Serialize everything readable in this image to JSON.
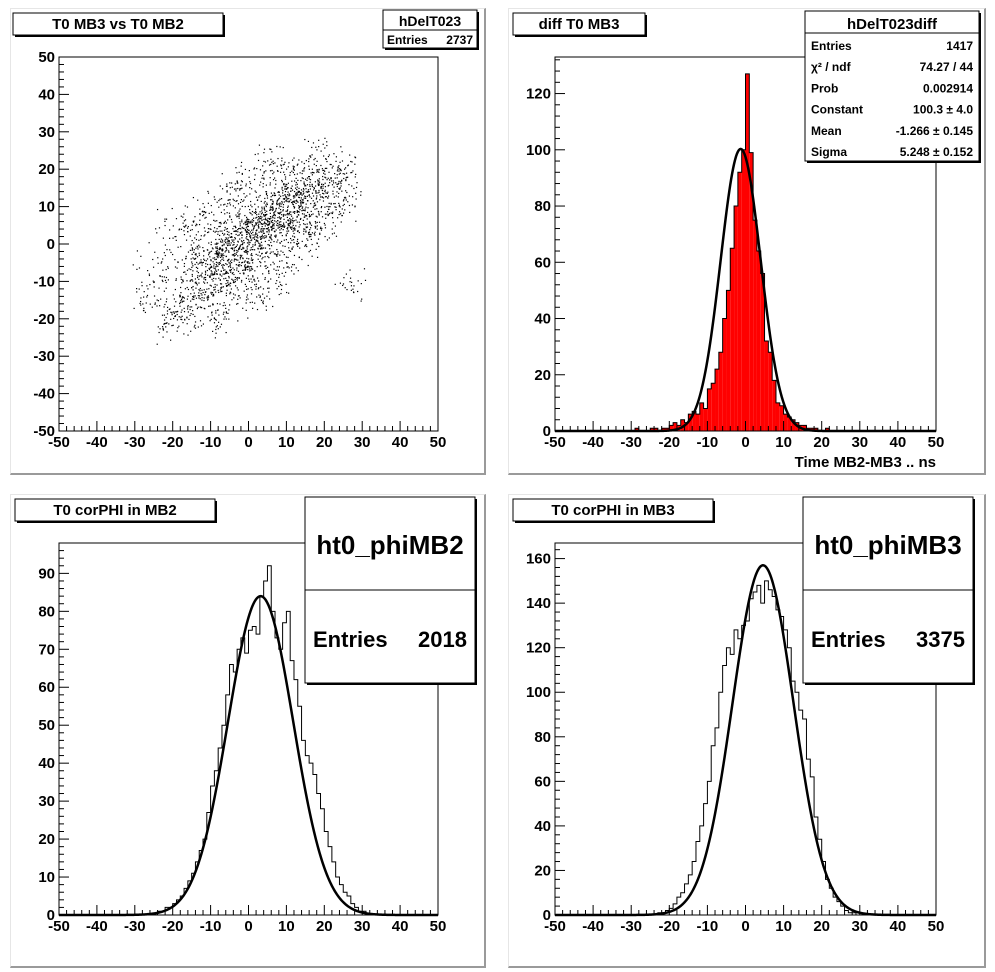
{
  "colors": {
    "fill_red": "#ff0000",
    "line": "#000000",
    "frame": "#000000",
    "pad_shadow": "#9a9a9a"
  },
  "panels": [
    {
      "id": "p1",
      "title": "T0 MB3 vs T0 MB2",
      "stats": {
        "name": "hDelT023",
        "rows": [
          {
            "label": "Entries",
            "value": "2737"
          }
        ]
      },
      "xlabel": ""
    },
    {
      "id": "p2",
      "title": "diff T0 MB3",
      "stats": {
        "name": "hDelT023diff",
        "rows": [
          {
            "label": "Entries",
            "value": "1417"
          },
          {
            "label": "χ² / ndf",
            "value": "74.27 / 44"
          },
          {
            "label": "Prob",
            "value": "0.002914"
          },
          {
            "label": "Constant",
            "value": "100.3 ± 4.0"
          },
          {
            "label": "Mean",
            "value": "-1.266 ± 0.145"
          },
          {
            "label": "Sigma",
            "value": "5.248 ± 0.152"
          }
        ]
      },
      "xlabel": "Time MB2-MB3  ..  ns"
    },
    {
      "id": "p3",
      "title": "T0 corPHI in MB2",
      "stats": {
        "name": "ht0_phiMB2",
        "entries_label": "Entries",
        "entries_value": "2018"
      },
      "xlabel": ""
    },
    {
      "id": "p4",
      "title": "T0 corPHI in MB3",
      "stats": {
        "name": "ht0_phiMB3",
        "entries_label": "Entries",
        "entries_value": "3375"
      },
      "xlabel": ""
    }
  ],
  "chart_data": [
    {
      "type": "scatter",
      "title": "T0 MB3 vs T0 MB2",
      "xlim": [
        -50,
        50
      ],
      "ylim": [
        -50,
        50
      ],
      "xticks": [
        "-50",
        "-40",
        "-30",
        "-20",
        "-10",
        "0",
        "10",
        "20",
        "30",
        "40",
        "50"
      ],
      "yticks": [
        "-50",
        "-40",
        "-30",
        "-20",
        "-10",
        "0",
        "10",
        "20",
        "30",
        "40",
        "50"
      ],
      "points": [
        [
          -22,
          -22
        ],
        [
          -20,
          -18
        ],
        [
          -18,
          -15
        ],
        [
          -17,
          -20
        ],
        [
          -16,
          -12
        ],
        [
          -15,
          -8
        ],
        [
          -14,
          -16
        ],
        [
          -13,
          -5
        ],
        [
          -12,
          -10
        ],
        [
          -12,
          -3
        ],
        [
          -11,
          -14
        ],
        [
          -10,
          -7
        ],
        [
          -10,
          0
        ],
        [
          -9,
          -4
        ],
        [
          -9,
          -12
        ],
        [
          -8,
          -2
        ],
        [
          -8,
          -9
        ],
        [
          -7,
          3
        ],
        [
          -7,
          -6
        ],
        [
          -6,
          -1
        ],
        [
          -6,
          -13
        ],
        [
          -5,
          -5
        ],
        [
          -5,
          2
        ],
        [
          -4,
          0
        ],
        [
          -4,
          -8
        ],
        [
          -3,
          4
        ],
        [
          -3,
          -3
        ],
        [
          -2,
          1
        ],
        [
          -2,
          -10
        ],
        [
          -1,
          -2
        ],
        [
          -1,
          6
        ],
        [
          0,
          0
        ],
        [
          0,
          -6
        ],
        [
          0,
          3
        ],
        [
          1,
          5
        ],
        [
          1,
          -4
        ],
        [
          2,
          2
        ],
        [
          2,
          8
        ],
        [
          3,
          -1
        ],
        [
          3,
          6
        ],
        [
          4,
          3
        ],
        [
          4,
          10
        ],
        [
          5,
          0
        ],
        [
          5,
          7
        ],
        [
          6,
          4
        ],
        [
          6,
          12
        ],
        [
          7,
          2
        ],
        [
          7,
          9
        ],
        [
          8,
          6
        ],
        [
          8,
          14
        ],
        [
          9,
          4
        ],
        [
          9,
          10
        ],
        [
          10,
          8
        ],
        [
          10,
          15
        ],
        [
          11,
          6
        ],
        [
          11,
          12
        ],
        [
          12,
          10
        ],
        [
          12,
          17
        ],
        [
          13,
          8
        ],
        [
          13,
          14
        ],
        [
          14,
          12
        ],
        [
          14,
          19
        ],
        [
          15,
          10
        ],
        [
          16,
          16
        ],
        [
          17,
          13
        ],
        [
          18,
          20
        ],
        [
          19,
          15
        ],
        [
          20,
          18
        ],
        [
          22,
          16
        ],
        [
          24,
          22
        ],
        [
          -25,
          -10
        ],
        [
          -20,
          5
        ],
        [
          -15,
          4
        ],
        [
          -12,
          8
        ],
        [
          -8,
          10
        ],
        [
          -5,
          12
        ],
        [
          -3,
          15
        ],
        [
          5,
          -10
        ],
        [
          10,
          -5
        ],
        [
          15,
          0
        ],
        [
          18,
          5
        ],
        [
          20,
          10
        ],
        [
          25,
          12
        ],
        [
          27,
          -11
        ],
        [
          -27,
          -14
        ],
        [
          -24,
          -5
        ],
        [
          0,
          18
        ],
        [
          3,
          20
        ],
        [
          6,
          22
        ],
        [
          -10,
          -20
        ],
        [
          -6,
          -18
        ],
        [
          2,
          -14
        ],
        [
          8,
          -8
        ],
        [
          12,
          2
        ],
        [
          16,
          4
        ],
        [
          21,
          8
        ],
        [
          23,
          13
        ],
        [
          26,
          18
        ],
        [
          19,
          25
        ],
        [
          -16,
          -2
        ]
      ]
    },
    {
      "type": "bar",
      "title": "diff T0 MB3",
      "xlabel": "Time MB2-MB3  ..  ns",
      "xlim": [
        -50,
        50
      ],
      "ylim": [
        0,
        133
      ],
      "xticks": [
        "-50",
        "-40",
        "-30",
        "-20",
        "-10",
        "0",
        "10",
        "20",
        "30",
        "40",
        "50"
      ],
      "yticks": [
        "0",
        "20",
        "40",
        "60",
        "80",
        "100",
        "120"
      ],
      "bin_width": 1,
      "x": [
        -30,
        -29,
        -28,
        -27,
        -26,
        -25,
        -24,
        -23,
        -22,
        -21,
        -20,
        -19,
        -18,
        -17,
        -16,
        -15,
        -14,
        -13,
        -12,
        -11,
        -10,
        -9,
        -8,
        -7,
        -6,
        -5,
        -4,
        -3,
        -2,
        -1,
        0,
        1,
        2,
        3,
        4,
        5,
        6,
        7,
        8,
        9,
        10,
        11,
        12,
        13,
        14,
        15,
        16,
        17,
        18,
        19,
        20,
        21,
        22,
        23
      ],
      "values": [
        0,
        1,
        0,
        0,
        0,
        1,
        1,
        0,
        1,
        1,
        2,
        3,
        2,
        4,
        3,
        6,
        7,
        6,
        10,
        8,
        15,
        17,
        22,
        28,
        40,
        50,
        65,
        80,
        92,
        100,
        127,
        99,
        75,
        64,
        56,
        32,
        28,
        18,
        10,
        9,
        6,
        5,
        4,
        3,
        2,
        2,
        1,
        1,
        1,
        0,
        0,
        1,
        0,
        0
      ],
      "fit": {
        "constant": 100.3,
        "mean": -1.266,
        "sigma": 5.248
      },
      "stats": {
        "entries": 1417,
        "chi2_ndf": "74.27 / 44",
        "prob": 0.002914
      }
    },
    {
      "type": "bar",
      "title": "T0 corPHI in MB2",
      "xlim": [
        -50,
        50
      ],
      "ylim": [
        0,
        98
      ],
      "xticks": [
        "-50",
        "-40",
        "-30",
        "-20",
        "-10",
        "0",
        "10",
        "20",
        "30",
        "40",
        "50"
      ],
      "yticks": [
        "0",
        "10",
        "20",
        "30",
        "40",
        "50",
        "60",
        "70",
        "80",
        "90"
      ],
      "bin_width": 1,
      "x": [
        -27,
        -26,
        -25,
        -24,
        -23,
        -22,
        -21,
        -20,
        -19,
        -18,
        -17,
        -16,
        -15,
        -14,
        -13,
        -12,
        -11,
        -10,
        -9,
        -8,
        -7,
        -6,
        -5,
        -4,
        -3,
        -2,
        -1,
        0,
        1,
        2,
        3,
        4,
        5,
        6,
        7,
        8,
        9,
        10,
        11,
        12,
        13,
        14,
        15,
        16,
        17,
        18,
        19,
        20,
        21,
        22,
        23,
        24,
        25,
        26,
        27,
        28,
        29,
        30,
        31,
        32
      ],
      "values": [
        0,
        0,
        0,
        1,
        1,
        2,
        2,
        3,
        4,
        5,
        7,
        9,
        11,
        14,
        17,
        20,
        27,
        34,
        38,
        44,
        50,
        58,
        66,
        64,
        70,
        73,
        69,
        75,
        76,
        74,
        84,
        88,
        92,
        80,
        73,
        70,
        77,
        80,
        67,
        62,
        55,
        46,
        42,
        40,
        37,
        32,
        28,
        22,
        18,
        14,
        10,
        8,
        6,
        5,
        3,
        2,
        1,
        1,
        0,
        0
      ],
      "fit": {
        "constant": 84,
        "mean": 3.2,
        "sigma": 8.6
      },
      "stats": {
        "entries": 2018
      }
    },
    {
      "type": "bar",
      "title": "T0 corPHI in MB3",
      "xlim": [
        -50,
        50
      ],
      "ylim": [
        0,
        167
      ],
      "xticks": [
        "-50",
        "-40",
        "-30",
        "-20",
        "-10",
        "0",
        "10",
        "20",
        "30",
        "40",
        "50"
      ],
      "yticks": [
        "0",
        "20",
        "40",
        "60",
        "80",
        "100",
        "120",
        "140",
        "160"
      ],
      "bin_width": 1,
      "x": [
        -24,
        -23,
        -22,
        -21,
        -20,
        -19,
        -18,
        -17,
        -16,
        -15,
        -14,
        -13,
        -12,
        -11,
        -10,
        -9,
        -8,
        -7,
        -6,
        -5,
        -4,
        -3,
        -2,
        -1,
        0,
        1,
        2,
        3,
        4,
        5,
        6,
        7,
        8,
        9,
        10,
        11,
        12,
        13,
        14,
        15,
        16,
        17,
        18,
        19,
        20,
        21,
        22,
        23,
        24,
        25,
        26,
        27,
        28,
        29,
        30,
        31
      ],
      "values": [
        0,
        1,
        1,
        2,
        3,
        5,
        8,
        10,
        14,
        18,
        24,
        33,
        40,
        50,
        60,
        76,
        84,
        100,
        112,
        120,
        117,
        128,
        124,
        130,
        132,
        142,
        145,
        148,
        140,
        150,
        146,
        143,
        137,
        134,
        128,
        120,
        105,
        100,
        92,
        88,
        70,
        62,
        44,
        34,
        24,
        16,
        12,
        8,
        6,
        4,
        2,
        1,
        1,
        0,
        0,
        0
      ],
      "fit": {
        "constant": 157,
        "mean": 4.6,
        "sigma": 8.0
      },
      "stats": {
        "entries": 3375
      }
    }
  ]
}
